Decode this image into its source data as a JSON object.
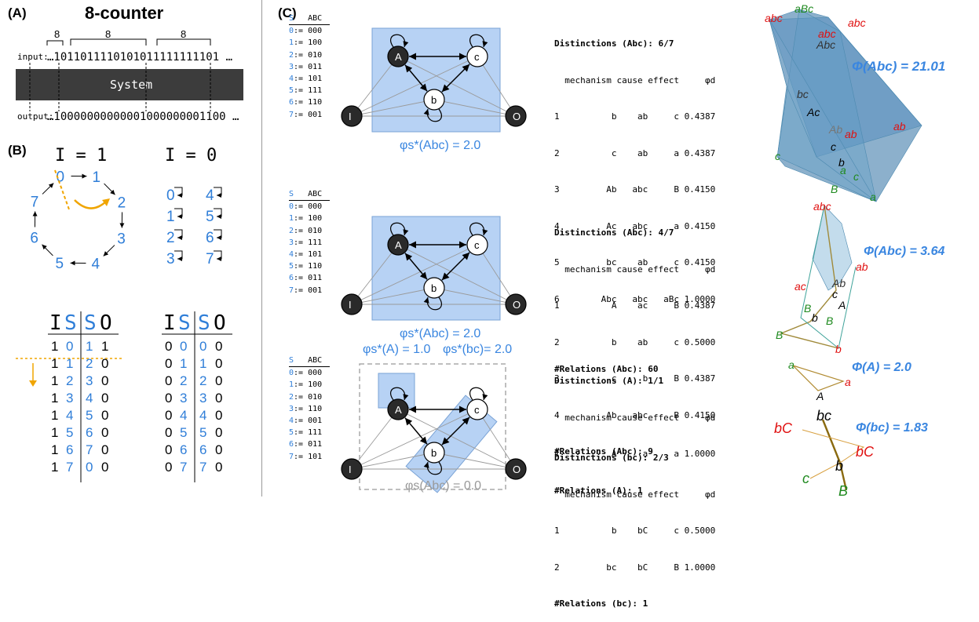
{
  "panel_a": {
    "letter": "(A)",
    "title": "8-counter",
    "brace_labels": [
      "8",
      "8",
      "8"
    ],
    "input_label": "input:",
    "input_bits": "…1011011110101011111111101 …",
    "system_label": "System",
    "output_label": "output:",
    "output_bits": "…10000000000001000000001100 …"
  },
  "panel_b": {
    "letter": "(B)",
    "cycle_title": "I = 1",
    "self_title": "I = 0",
    "cycle_nodes": [
      "0",
      "1",
      "2",
      "3",
      "4",
      "5",
      "6",
      "7"
    ],
    "self_nodes_left": [
      "0",
      "1",
      "2",
      "3"
    ],
    "self_nodes_right": [
      "4",
      "5",
      "6",
      "7"
    ],
    "table_headers": [
      "I",
      "S",
      "S",
      "O"
    ],
    "table_left": [
      [
        "1",
        "0",
        "1",
        "1"
      ],
      [
        "1",
        "1",
        "2",
        "0"
      ],
      [
        "1",
        "2",
        "3",
        "0"
      ],
      [
        "1",
        "3",
        "4",
        "0"
      ],
      [
        "1",
        "4",
        "5",
        "0"
      ],
      [
        "1",
        "5",
        "6",
        "0"
      ],
      [
        "1",
        "6",
        "7",
        "0"
      ],
      [
        "1",
        "7",
        "0",
        "0"
      ]
    ],
    "table_right": [
      [
        "0",
        "0",
        "0",
        "0"
      ],
      [
        "0",
        "1",
        "1",
        "0"
      ],
      [
        "0",
        "2",
        "2",
        "0"
      ],
      [
        "0",
        "3",
        "3",
        "0"
      ],
      [
        "0",
        "4",
        "4",
        "0"
      ],
      [
        "0",
        "5",
        "5",
        "0"
      ],
      [
        "0",
        "6",
        "6",
        "0"
      ],
      [
        "0",
        "7",
        "7",
        "0"
      ]
    ]
  },
  "panel_c": {
    "letter": "(C)",
    "node_labels": {
      "A": "A",
      "b": "b",
      "c": "c",
      "I": "I",
      "O": "O"
    },
    "state_header": [
      "S",
      "ABC"
    ],
    "rows": [
      {
        "states": [
          "0:= 000",
          "1:= 100",
          "2:= 010",
          "3:= 011",
          "4:= 101",
          "5:= 111",
          "6:= 110",
          "7:= 001"
        ],
        "phi_label": "φs*(Abc) = 2.0",
        "dist_header": "Distinctions (Abc): 6/7",
        "col_header": "  mechanism cause effect     φd",
        "dist_rows": [
          "1          b    ab     c 0.4387",
          "2          c    ab     a 0.4387",
          "3         Ab   abc     B 0.4150",
          "4         Ac   abc     a 0.4150",
          "5         bc    ab     c 0.4150",
          "6        Abc   abc   aBc 1.0000"
        ],
        "relations": "#Relations (Abc): 60",
        "big_phi": "Φ(Abc) = 21.01"
      },
      {
        "states": [
          "0:= 000",
          "1:= 100",
          "2:= 010",
          "3:= 111",
          "4:= 101",
          "5:= 110",
          "6:= 011",
          "7:= 001"
        ],
        "phi_label": "φs*(Abc) = 2.0",
        "dist_header": "Distinctions (Abc): 4/7",
        "col_header": "  mechanism cause effect     φd",
        "dist_rows": [
          "1          A    ac     B 0.4387",
          "2          b    ab     c 0.5000",
          "3          c     b     B 0.4387",
          "4         Ab   abc     B 0.4150"
        ],
        "relations": "#Relations (Abc): 9",
        "big_phi": "Φ(Abc) =  3.64"
      },
      {
        "states": [
          "0:= 000",
          "1:= 100",
          "2:= 010",
          "3:= 110",
          "4:= 001",
          "5:= 111",
          "6:= 011",
          "7:= 101"
        ],
        "phi_label_a": "φs*(A) = 1.0",
        "phi_label_bc": "φs*(bc)= 2.0",
        "phi_label_total": "φs(Abc) = 0.0",
        "dist_a_header": "Distinctions (A): 1/1",
        "col_header": "  mechanism cause effect     φd",
        "dist_a_rows": [
          "1          A     a     a 1.0000"
        ],
        "relations_a": "#Relations (A): 1",
        "dist_bc_header": "Distinctions (bc): 2/3",
        "dist_bc_rows": [
          "1          b    bC     c 0.5000",
          "2         bc    bC     B 1.0000"
        ],
        "relations_bc": "#Relations (bc): 1",
        "big_phi_a": "Φ(A) = 2.0",
        "big_phi_bc": "Φ(bc) = 1.83"
      }
    ],
    "poly_labels_1": [
      "abc",
      "aBc",
      "abc",
      "abc",
      "Abc",
      "bc",
      "Ac",
      "Ab",
      "ab",
      "c",
      "ab",
      "c",
      "b",
      "a",
      "B",
      "c",
      "a"
    ],
    "poly_labels_2": [
      "abc",
      "ab",
      "ac",
      "Ab",
      "c",
      "A",
      "B",
      "b",
      "B",
      "B",
      "b"
    ],
    "poly_labels_3": [
      "a",
      "a",
      "A"
    ],
    "poly_labels_4": [
      "bc",
      "bC",
      "bC",
      "b",
      "c",
      "B"
    ]
  },
  "colors": {
    "blue": "#2f7ed8",
    "box": "#a9c8f0",
    "boxStroke": "#6f9fd8",
    "gray": "#888888",
    "dark": "#3a3a3a",
    "orange": "#f0a500",
    "red": "#e02020",
    "green": "#2a8a2a"
  }
}
